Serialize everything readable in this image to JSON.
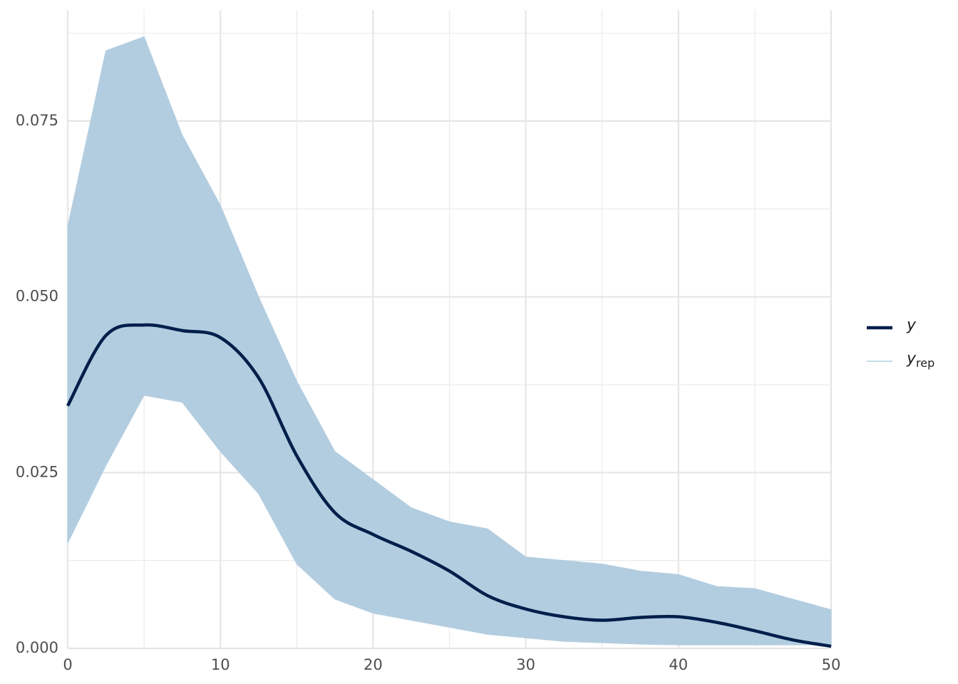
{
  "chart_data": {
    "type": "density_overlay",
    "x": [
      0,
      2.5,
      5,
      7.5,
      10,
      12.5,
      15,
      17.5,
      20,
      22.5,
      25,
      27.5,
      30,
      32.5,
      35,
      37.5,
      40,
      42.5,
      45,
      47.5,
      50
    ],
    "series": [
      {
        "name": "y",
        "color": "#011f4b",
        "values": [
          0.0345,
          0.0445,
          0.046,
          0.0452,
          0.0442,
          0.0385,
          0.0274,
          0.0193,
          0.0162,
          0.0138,
          0.011,
          0.0075,
          0.0056,
          0.0045,
          0.004,
          0.0044,
          0.0045,
          0.0037,
          0.0025,
          0.0012,
          0.0003
        ]
      },
      {
        "name": "y",
        "name_sub": "rep",
        "color": "#b3cde0",
        "upper": [
          0.06,
          0.085,
          0.087,
          0.073,
          0.063,
          0.05,
          0.038,
          0.028,
          0.024,
          0.02,
          0.018,
          0.017,
          0.013,
          0.0125,
          0.012,
          0.011,
          0.0105,
          0.0088,
          0.0085,
          0.007,
          0.0055
        ],
        "lower": [
          0.015,
          0.026,
          0.036,
          0.035,
          0.028,
          0.022,
          0.012,
          0.007,
          0.005,
          0.004,
          0.003,
          0.002,
          0.0015,
          0.001,
          0.0008,
          0.0006,
          0.0005,
          0.0005,
          0.0005,
          0.0005,
          0.0005
        ]
      }
    ],
    "xlim": [
      0,
      50
    ],
    "xticks": [
      0,
      10,
      20,
      30,
      40,
      50
    ],
    "xminor": [
      5,
      15,
      25,
      35,
      45
    ],
    "ylim": [
      0,
      0.0908
    ],
    "yticks": [
      {
        "value": 0,
        "label": "0.000"
      },
      {
        "value": 0.025,
        "label": "0.025"
      },
      {
        "value": 0.05,
        "label": "0.050"
      },
      {
        "value": 0.075,
        "label": "0.075"
      }
    ],
    "yminor": [
      0.0125,
      0.0375,
      0.0625,
      0.0875
    ],
    "grid": true,
    "legend": "right"
  }
}
